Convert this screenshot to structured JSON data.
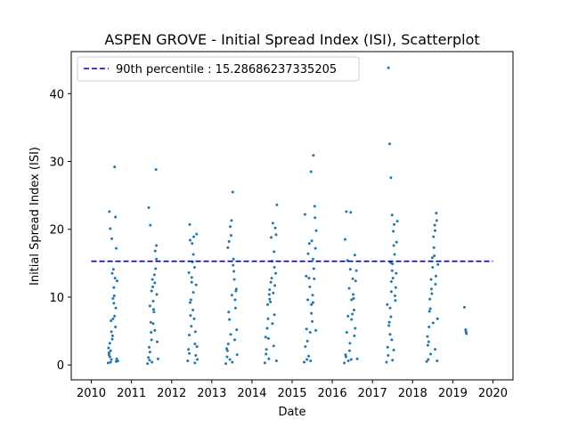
{
  "chart_data": {
    "type": "scatter",
    "title": "ASPEN GROVE - Initial Spread Index (ISI), Scatterplot",
    "xlabel": "Date",
    "ylabel": "Initial Spread Index (ISI)",
    "xlim": [
      2009.5,
      2020.5
    ],
    "ylim": [
      -2.2,
      46.2
    ],
    "x_ticks": [
      "2010",
      "2011",
      "2012",
      "2013",
      "2014",
      "2015",
      "2016",
      "2017",
      "2018",
      "2019",
      "2020"
    ],
    "x_tick_values": [
      2010,
      2011,
      2012,
      2013,
      2014,
      2015,
      2016,
      2017,
      2018,
      2019,
      2020
    ],
    "y_ticks": [
      "0",
      "10",
      "20",
      "30",
      "40"
    ],
    "y_tick_values": [
      0,
      10,
      20,
      30,
      40
    ],
    "grid": false,
    "legend": {
      "position": "top-left",
      "entries": [
        {
          "label": "90th percentile : 15.28686237335205",
          "color": "#0000cc",
          "style": "dashed"
        }
      ]
    },
    "reference_line": {
      "value": 15.28686237335205,
      "x_range": [
        2010,
        2020
      ],
      "color": "#0000cc",
      "style": "dashed"
    },
    "series": [
      {
        "color": "#1f77b4",
        "x": [
          2010.42,
          2010.44,
          2010.46,
          2010.48,
          2010.5,
          2010.52,
          2010.54,
          2010.56,
          2010.58,
          2010.6,
          2010.62,
          2010.64,
          2010.45,
          2010.47,
          2010.51,
          2010.55,
          2010.57,
          2010.61,
          2010.43,
          2010.49,
          2010.53,
          2010.59,
          2010.63,
          2010.46,
          2010.52,
          2010.56,
          2010.6,
          2010.48,
          2010.54,
          2010.62,
          2010.58,
          2010.5,
          2010.44,
          2010.66,
          2011.4,
          2011.42,
          2011.44,
          2011.46,
          2011.48,
          2011.5,
          2011.52,
          2011.54,
          2011.56,
          2011.58,
          2011.6,
          2011.62,
          2011.64,
          2011.45,
          2011.49,
          2011.53,
          2011.57,
          2011.61,
          2011.43,
          2011.47,
          2011.51,
          2011.55,
          2011.59,
          2011.63,
          2011.46,
          2011.5,
          2011.54,
          2011.58,
          2011.62,
          2011.66,
          2012.4,
          2012.42,
          2012.44,
          2012.46,
          2012.48,
          2012.5,
          2012.52,
          2012.54,
          2012.56,
          2012.58,
          2012.6,
          2012.62,
          2012.64,
          2012.45,
          2012.49,
          2012.53,
          2012.57,
          2012.61,
          2012.43,
          2012.47,
          2012.51,
          2012.55,
          2012.59,
          2012.63,
          2012.46,
          2012.5,
          2012.54,
          2012.58,
          2012.44,
          2013.35,
          2013.38,
          2013.41,
          2013.44,
          2013.47,
          2013.5,
          2013.53,
          2013.56,
          2013.59,
          2013.62,
          2013.4,
          2013.43,
          2013.46,
          2013.49,
          2013.52,
          2013.55,
          2013.58,
          2013.61,
          2013.37,
          2013.42,
          2013.48,
          2013.54,
          2013.6,
          2013.45,
          2013.51,
          2013.57,
          2013.39,
          2013.63,
          2014.32,
          2014.35,
          2014.38,
          2014.41,
          2014.44,
          2014.47,
          2014.5,
          2014.53,
          2014.56,
          2014.59,
          2014.62,
          2014.36,
          2014.4,
          2014.44,
          2014.48,
          2014.52,
          2014.56,
          2014.6,
          2014.34,
          2014.39,
          2014.43,
          2014.49,
          2014.55,
          2014.61,
          2014.46,
          2014.51,
          2014.57,
          2014.58,
          2014.54,
          2014.42,
          2015.3,
          2015.33,
          2015.36,
          2015.39,
          2015.42,
          2015.45,
          2015.48,
          2015.51,
          2015.54,
          2015.57,
          2015.6,
          2015.35,
          2015.4,
          2015.44,
          2015.48,
          2015.52,
          2015.56,
          2015.32,
          2015.38,
          2015.43,
          2015.47,
          2015.53,
          2015.58,
          2015.46,
          2015.5,
          2015.55,
          2015.41,
          2015.37,
          2015.49,
          2015.52,
          2015.59,
          2016.3,
          2016.33,
          2016.36,
          2016.39,
          2016.42,
          2016.45,
          2016.48,
          2016.51,
          2016.54,
          2016.57,
          2016.6,
          2016.35,
          2016.4,
          2016.44,
          2016.48,
          2016.52,
          2016.56,
          2016.32,
          2016.38,
          2016.43,
          2016.47,
          2016.53,
          2016.58,
          2016.46,
          2016.5,
          2016.55,
          2016.34,
          2016.62,
          2017.35,
          2017.38,
          2017.41,
          2017.44,
          2017.47,
          2017.5,
          2017.53,
          2017.56,
          2017.59,
          2017.62,
          2017.4,
          2017.43,
          2017.46,
          2017.49,
          2017.52,
          2017.55,
          2017.58,
          2017.37,
          2017.42,
          2017.48,
          2017.54,
          2017.6,
          2017.45,
          2017.51,
          2017.57,
          2017.39,
          2017.44,
          2017.46,
          2017.47,
          2017.49,
          2017.5,
          2017.53,
          2018.35,
          2018.38,
          2018.41,
          2018.44,
          2018.47,
          2018.5,
          2018.53,
          2018.56,
          2018.59,
          2018.62,
          2018.4,
          2018.43,
          2018.46,
          2018.49,
          2018.52,
          2018.55,
          2018.58,
          2018.37,
          2018.42,
          2018.48,
          2018.54,
          2018.6,
          2018.45,
          2018.51,
          2018.57,
          2018.39,
          2018.63,
          2018.56,
          2018.61,
          2019.29,
          2019.32,
          2019.33,
          2019.34
        ],
        "y": [
          0.3,
          1.5,
          3.2,
          2.1,
          0.8,
          13.5,
          9.8,
          11.4,
          7.2,
          5.6,
          0.5,
          12.4,
          22.6,
          20.1,
          18.6,
          14.1,
          10.2,
          8.4,
          2.5,
          6.5,
          4.3,
          12.8,
          0.9,
          1.2,
          3.8,
          9.1,
          21.8,
          0.4,
          6.8,
          17.2,
          29.2,
          4.9,
          1.8,
          0.6,
          0.2,
          1.1,
          2.6,
          8.7,
          6.3,
          10.9,
          12.6,
          9.4,
          7.8,
          5.1,
          14.2,
          15.6,
          3.4,
          0.7,
          4.8,
          11.5,
          13.3,
          28.8,
          23.2,
          20.6,
          0.4,
          8.2,
          16.8,
          10.4,
          1.9,
          3.7,
          6.1,
          12.1,
          17.6,
          0.9,
          0.6,
          2.3,
          4.4,
          18.4,
          9.6,
          12.9,
          15.2,
          10.7,
          6.8,
          3.1,
          1.4,
          19.3,
          0.8,
          20.7,
          5.7,
          8.1,
          14.4,
          11.8,
          13.6,
          7.3,
          17.9,
          18.9,
          4.9,
          2.7,
          9.2,
          12.2,
          16.3,
          0.3,
          1.7,
          0.2,
          1.2,
          3.1,
          6.7,
          4.5,
          10.3,
          14.7,
          12.6,
          8.4,
          5.2,
          17.3,
          18.2,
          20.4,
          21.3,
          25.5,
          13.8,
          9.6,
          11.2,
          2.4,
          7.8,
          19.1,
          15.6,
          10.9,
          0.8,
          0.4,
          3.7,
          2.1,
          1.5,
          0.3,
          1.6,
          5.4,
          3.9,
          9.7,
          12.2,
          15.3,
          10.6,
          7.4,
          13.5,
          23.6,
          2.3,
          6.8,
          11.1,
          18.8,
          20.9,
          14.4,
          19.2,
          4.1,
          8.9,
          10.4,
          12.8,
          16.7,
          0.6,
          9.3,
          6.1,
          11.7,
          20.2,
          2.8,
          0.9,
          0.4,
          2.7,
          5.3,
          9.6,
          12.8,
          4.8,
          7.6,
          10.3,
          14.2,
          21.7,
          19.8,
          13.1,
          16.4,
          11.5,
          8.9,
          15.6,
          23.4,
          22.2,
          3.5,
          17.9,
          28.5,
          30.9,
          17.2,
          0.6,
          6.4,
          12.7,
          1.3,
          0.8,
          18.3,
          9.2,
          5.1,
          0.3,
          1.5,
          4.8,
          7.2,
          11.3,
          14.1,
          9.6,
          12.7,
          8.1,
          5.4,
          13.9,
          22.6,
          0.6,
          3.2,
          6.7,
          10.4,
          16.2,
          18.5,
          15.4,
          2.1,
          0.8,
          9.8,
          12.4,
          22.5,
          7.5,
          4.3,
          1.2,
          0.9,
          0.4,
          2.6,
          5.8,
          8.4,
          12.3,
          14.9,
          17.6,
          10.2,
          13.5,
          21.2,
          43.8,
          32.6,
          27.6,
          22.1,
          19.7,
          16.3,
          11.4,
          8.9,
          6.3,
          3.7,
          20.7,
          18.1,
          15.1,
          12.8,
          9.5,
          1.4,
          4.5,
          7.1,
          10.8,
          13.9,
          0.7,
          2.2,
          0.5,
          2.9,
          5.6,
          8.3,
          11.2,
          14.4,
          17.3,
          19.8,
          22.4,
          6.8,
          3.4,
          9.7,
          12.6,
          15.8,
          18.9,
          20.6,
          13.1,
          4.2,
          7.9,
          10.5,
          16.1,
          21.3,
          1.6,
          6.2,
          11.9,
          0.8,
          14.8,
          2.3,
          0.6,
          8.5,
          5.2,
          4.9,
          4.6
        ]
      }
    ]
  }
}
